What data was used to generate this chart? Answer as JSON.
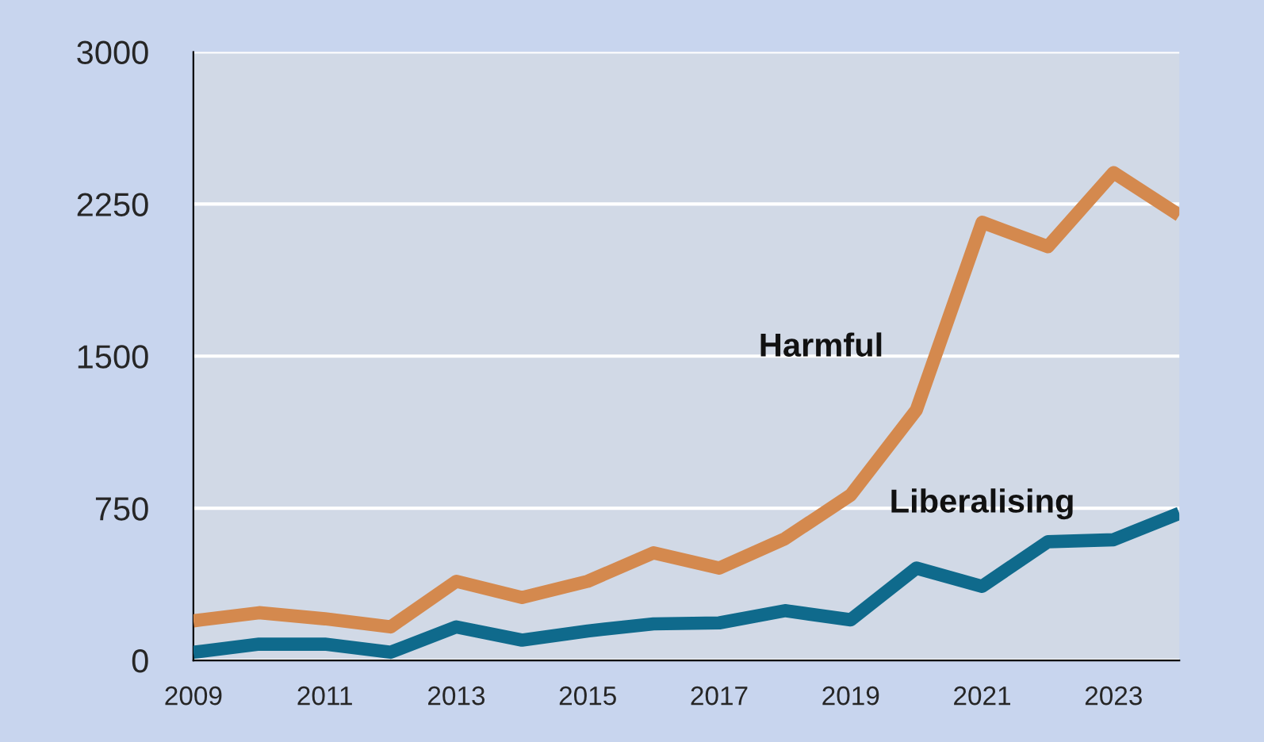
{
  "chart_data": {
    "type": "line",
    "x": [
      2009,
      2010,
      2011,
      2012,
      2013,
      2014,
      2015,
      2016,
      2017,
      2018,
      2019,
      2020,
      2021,
      2022,
      2023,
      2024
    ],
    "series": [
      {
        "name": "Harmful",
        "color": "#d4894e",
        "values": [
          195,
          235,
          205,
          165,
          390,
          310,
          390,
          530,
          455,
          600,
          815,
          1235,
          2160,
          2040,
          2405,
          2195
        ]
      },
      {
        "name": "Liberalising",
        "color": "#0f6a8c",
        "values": [
          40,
          80,
          80,
          40,
          165,
          100,
          145,
          180,
          185,
          245,
          200,
          455,
          365,
          585,
          595,
          725
        ]
      }
    ],
    "xlim": [
      2009,
      2024
    ],
    "xticks": [
      2009,
      2011,
      2013,
      2015,
      2017,
      2019,
      2021,
      2023
    ],
    "ylim": [
      0,
      3000
    ],
    "yticks": [
      0,
      750,
      1500,
      2250,
      3000
    ],
    "grid": "y",
    "legend": false,
    "marker": "none",
    "line_style": "solid"
  }
}
